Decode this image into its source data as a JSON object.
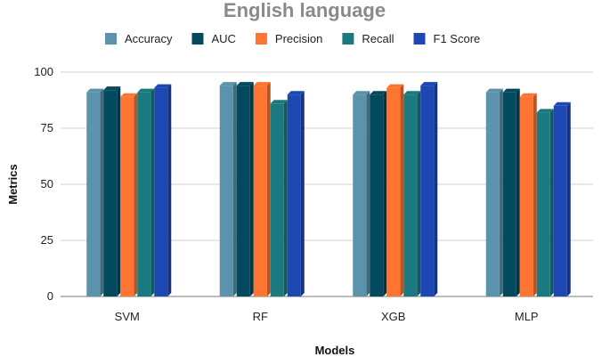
{
  "chart_data": {
    "type": "bar",
    "title": "English language",
    "xlabel": "Models",
    "ylabel": "Metrics",
    "categories": [
      "SVM",
      "RF",
      "XGB",
      "MLP"
    ],
    "ylim": [
      0,
      100
    ],
    "yticks": [
      0,
      25,
      50,
      75,
      100
    ],
    "grid": true,
    "legend_position": "top",
    "series": [
      {
        "name": "Accuracy",
        "color": "#5b93ad",
        "values": [
          91,
          94,
          90,
          91
        ]
      },
      {
        "name": "AUC",
        "color": "#044a5e",
        "values": [
          92,
          94,
          90,
          91
        ]
      },
      {
        "name": "Precision",
        "color": "#ff7430",
        "values": [
          89,
          94,
          93,
          89
        ]
      },
      {
        "name": "Recall",
        "color": "#1a7a80",
        "values": [
          91,
          86,
          90,
          82
        ]
      },
      {
        "name": "F1 Score",
        "color": "#1d47b3",
        "values": [
          93,
          90,
          94,
          85
        ]
      }
    ]
  }
}
